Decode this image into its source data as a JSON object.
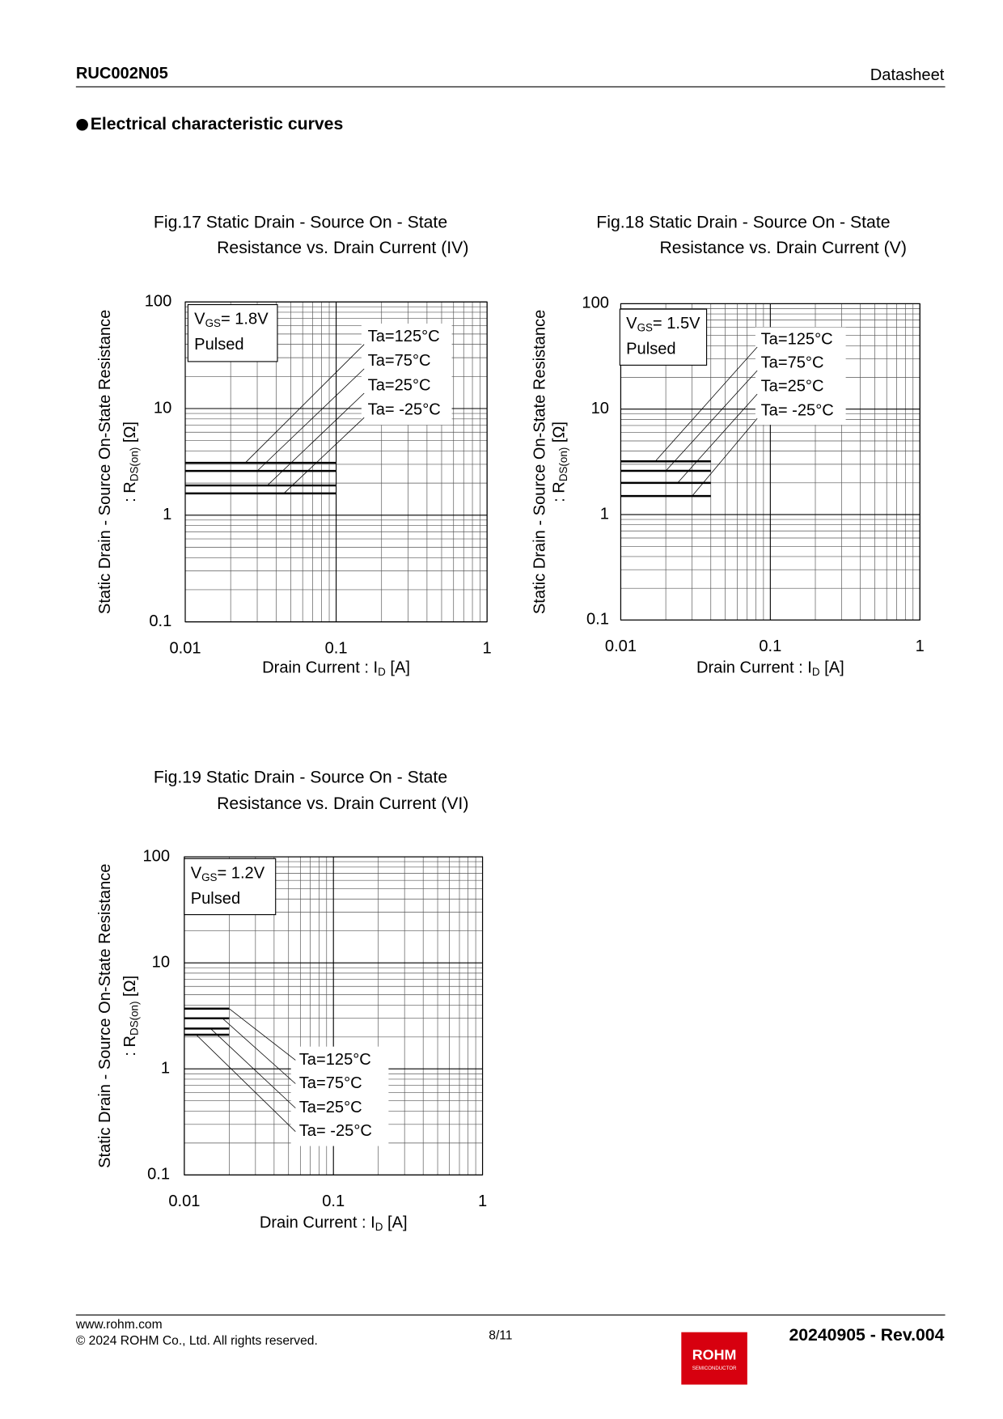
{
  "header": {
    "part_number": "RUC002N05",
    "doc_type": "Datasheet"
  },
  "section_title": "Electrical characteristic curves",
  "chart_data": [
    {
      "type": "line",
      "title": [
        "Fig.17 Static Drain - Source On - State",
        "Resistance vs. Drain Current (IV)"
      ],
      "x_label": {
        "text": "Drain Current : I",
        "sub": "D",
        "suffix": " [A]"
      },
      "y_label": {
        "text": "Static Drain - Source On-State Resistance",
        "prefix": ": R",
        "sub": "DS(on)",
        "suffix": " [Ω]"
      },
      "condition": {
        "symbol": "V",
        "sub": "GS",
        "value": "= 1.8V",
        "mode": "Pulsed"
      },
      "xscale": "log",
      "yscale": "log",
      "xlim": [
        0.01,
        1
      ],
      "ylim": [
        0.1,
        100
      ],
      "xticks": [
        0.01,
        0.1,
        1
      ],
      "yticks": [
        0.1,
        1,
        10,
        100
      ],
      "grid": true,
      "x": [
        0.01,
        0.1
      ],
      "series": [
        {
          "name": "Ta=125°C",
          "color": "#000000",
          "values": [
            3.1,
            3.1
          ]
        },
        {
          "name": "Ta=75°C",
          "color": "#000000",
          "values": [
            2.6,
            2.6
          ]
        },
        {
          "name": "Ta=25°C",
          "color": "#000000",
          "values": [
            1.9,
            1.9
          ]
        },
        {
          "name": "Ta= -25°C",
          "color": "#000000",
          "values": [
            1.6,
            1.6
          ]
        }
      ]
    },
    {
      "type": "line",
      "title": [
        "Fig.18 Static Drain - Source On - State",
        "Resistance vs. Drain Current (V)"
      ],
      "x_label": {
        "text": "Drain Current : I",
        "sub": "D",
        "suffix": " [A]"
      },
      "y_label": {
        "text": "Static Drain - Source On-State Resistance",
        "prefix": ": R",
        "sub": "DS(on)",
        "suffix": " [Ω]"
      },
      "condition": {
        "symbol": "V",
        "sub": "GS",
        "value": "= 1.5V",
        "mode": "Pulsed"
      },
      "xscale": "log",
      "yscale": "log",
      "xlim": [
        0.01,
        1
      ],
      "ylim": [
        0.1,
        100
      ],
      "xticks": [
        0.01,
        0.1,
        1
      ],
      "yticks": [
        0.1,
        1,
        10,
        100
      ],
      "grid": true,
      "x": [
        0.01,
        0.04
      ],
      "series": [
        {
          "name": "Ta=125°C",
          "color": "#000000",
          "values": [
            3.2,
            3.2
          ]
        },
        {
          "name": "Ta=75°C",
          "color": "#000000",
          "values": [
            2.6,
            2.6
          ]
        },
        {
          "name": "Ta=25°C",
          "color": "#000000",
          "values": [
            2.0,
            2.0
          ]
        },
        {
          "name": "Ta= -25°C",
          "color": "#000000",
          "values": [
            1.5,
            1.5
          ]
        }
      ]
    },
    {
      "type": "line",
      "title": [
        "Fig.19 Static Drain - Source On - State",
        "Resistance vs. Drain Current (VI)"
      ],
      "x_label": {
        "text": "Drain Current : I",
        "sub": "D",
        "suffix": " [A]"
      },
      "y_label": {
        "text": "Static Drain - Source On-State Resistance",
        "prefix": ": R",
        "sub": "DS(on)",
        "suffix": " [Ω]"
      },
      "condition": {
        "symbol": "V",
        "sub": "GS",
        "value": "= 1.2V",
        "mode": "Pulsed"
      },
      "xscale": "log",
      "yscale": "log",
      "xlim": [
        0.01,
        1
      ],
      "ylim": [
        0.1,
        100
      ],
      "xticks": [
        0.01,
        0.1,
        1
      ],
      "yticks": [
        0.1,
        1,
        10,
        100
      ],
      "grid": true,
      "x": [
        0.01,
        0.02
      ],
      "series": [
        {
          "name": "Ta=125°C",
          "color": "#000000",
          "values": [
            3.7,
            3.7
          ]
        },
        {
          "name": "Ta=75°C",
          "color": "#000000",
          "values": [
            3.0,
            3.0
          ]
        },
        {
          "name": "Ta=25°C",
          "color": "#000000",
          "values": [
            2.4,
            2.4
          ]
        },
        {
          "name": "Ta= -25°C",
          "color": "#000000",
          "values": [
            2.1,
            2.1
          ]
        }
      ]
    }
  ],
  "footer": {
    "website": "www.rohm.com",
    "copyright": "© 2024 ROHM Co., Ltd. All rights reserved.",
    "page": "8/11",
    "revision": "20240905 - Rev.004",
    "logo": {
      "name": "ROHM",
      "sub": "SEMICONDUCTOR"
    }
  }
}
